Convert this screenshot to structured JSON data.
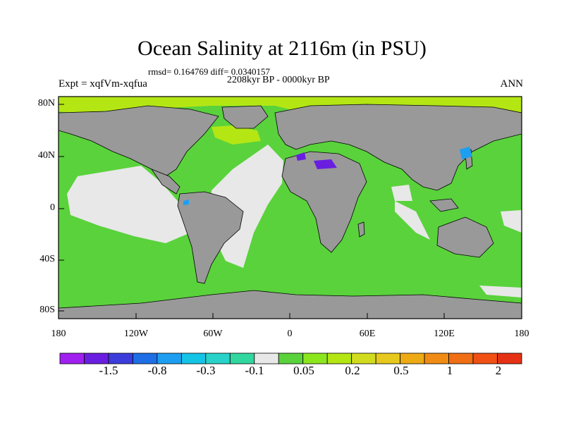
{
  "title": "Ocean Salinity at 2116m (in PSU)",
  "stats": "rmsd= 0.164769 diff= 0.0340157",
  "period": "2208kyr BP - 0000kyr BP",
  "experiment": "Expt = xqfVm-xqfua",
  "season": "ANN",
  "lat_labels": [
    "80N",
    "40N",
    "0",
    "40S",
    "80S"
  ],
  "lon_labels": [
    "180",
    "120W",
    "60W",
    "0",
    "60E",
    "120E",
    "180"
  ],
  "colorbar": {
    "colors": [
      "#a020f0",
      "#6a1ee0",
      "#3c3cdc",
      "#1e6ee6",
      "#1e9ef0",
      "#14c4e6",
      "#28d2c8",
      "#32d7a0",
      "#e8e8e8",
      "#5ad23c",
      "#8ce61e",
      "#b4e614",
      "#d2dc1e",
      "#e6c81e",
      "#eeaa14",
      "#f08c14",
      "#f06e14",
      "#f05014",
      "#e63214"
    ],
    "labels": [
      "-1.5",
      "-0.8",
      "-0.3",
      "-0.1",
      "0.05",
      "0.2",
      "0.5",
      "1",
      "2"
    ]
  },
  "colors": {
    "land": "#999999",
    "ocean_positive": "#5ad23c",
    "near_zero": "#e8e8e8",
    "arctic": "#b4e614",
    "negative": "#6a1ee0",
    "cyan": "#14c4e6"
  }
}
